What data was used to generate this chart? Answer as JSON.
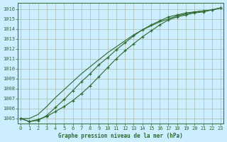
{
  "title": "Graphe pression niveau de la mer (hPa)",
  "bg_color": "#cceeff",
  "line_color": "#2d6a2d",
  "grid_color": "#aabbaa",
  "xlim": [
    -0.3,
    23.3
  ],
  "ylim": [
    1004.5,
    1016.6
  ],
  "yticks": [
    1005,
    1006,
    1007,
    1008,
    1009,
    1010,
    1011,
    1012,
    1013,
    1014,
    1015,
    1016
  ],
  "xticks": [
    0,
    1,
    2,
    3,
    4,
    5,
    6,
    7,
    8,
    9,
    10,
    11,
    12,
    13,
    14,
    15,
    16,
    17,
    18,
    19,
    20,
    21,
    22,
    23
  ],
  "line1_x": [
    0,
    1,
    2,
    3,
    4,
    5,
    6,
    7,
    8,
    9,
    10,
    11,
    12,
    13,
    14,
    15,
    16,
    17,
    18,
    19,
    20,
    21,
    22,
    23
  ],
  "line1_y": [
    1005.0,
    1004.7,
    1004.8,
    1005.3,
    1006.1,
    1006.9,
    1007.8,
    1008.7,
    1009.5,
    1010.4,
    1011.1,
    1011.9,
    1012.6,
    1013.3,
    1013.9,
    1014.4,
    1014.8,
    1015.2,
    1015.4,
    1015.6,
    1015.7,
    1015.8,
    1015.9,
    1016.1
  ],
  "line2_x": [
    0,
    1,
    2,
    3,
    4,
    5,
    6,
    7,
    8,
    9,
    10,
    11,
    12,
    13,
    14,
    15,
    16,
    17,
    18,
    19,
    20,
    21,
    22,
    23
  ],
  "line2_y": [
    1005.0,
    1004.7,
    1004.9,
    1005.2,
    1005.7,
    1006.2,
    1006.8,
    1007.5,
    1008.3,
    1009.2,
    1010.1,
    1011.0,
    1011.8,
    1012.5,
    1013.2,
    1013.8,
    1014.4,
    1014.9,
    1015.2,
    1015.4,
    1015.6,
    1015.7,
    1015.9,
    1016.1
  ],
  "line3_x": [
    0,
    1,
    2,
    3,
    4,
    5,
    6,
    7,
    8,
    9,
    10,
    11,
    12,
    13,
    14,
    15,
    16,
    17,
    18,
    19,
    20,
    21,
    22,
    23
  ],
  "line3_y": [
    1005.0,
    1005.0,
    1005.4,
    1006.2,
    1007.1,
    1007.9,
    1008.7,
    1009.5,
    1010.2,
    1010.9,
    1011.6,
    1012.2,
    1012.8,
    1013.4,
    1013.9,
    1014.3,
    1014.7,
    1015.0,
    1015.3,
    1015.5,
    1015.7,
    1015.8,
    1015.9,
    1016.1
  ]
}
